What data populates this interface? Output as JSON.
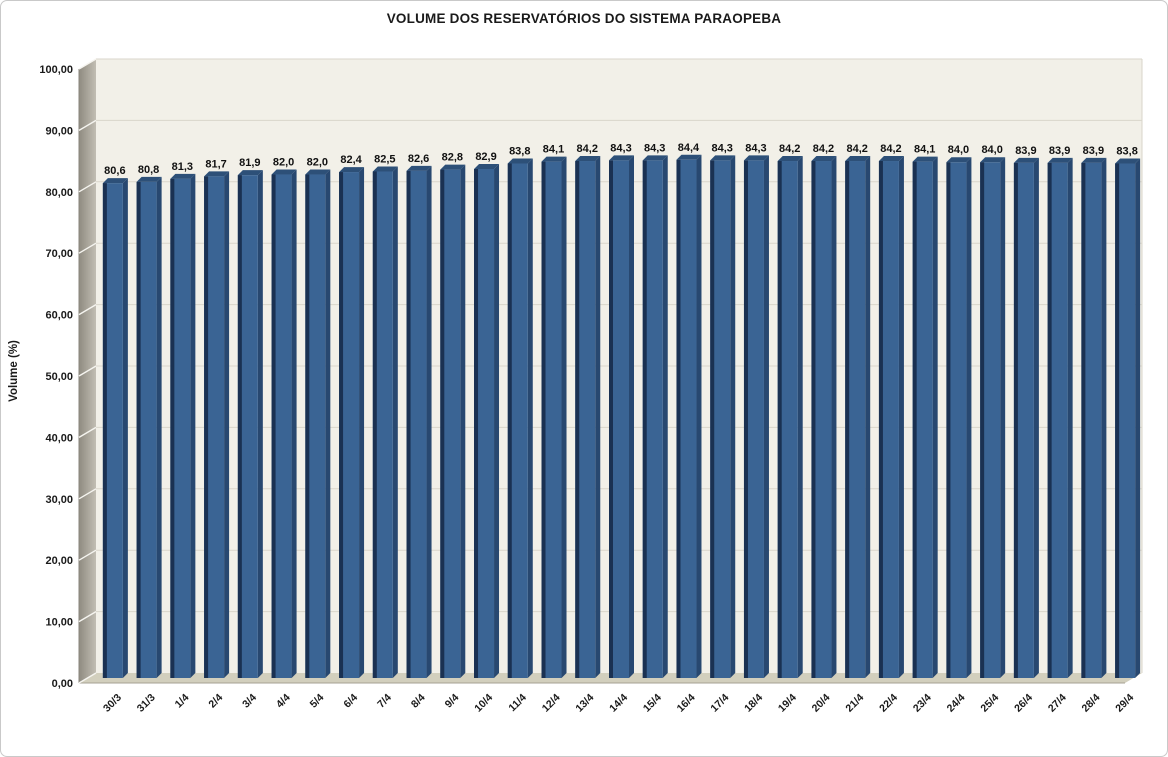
{
  "window": {
    "background": "#ffffff",
    "border_color": "#c9c9c9"
  },
  "chart_data": {
    "type": "bar",
    "style": "3d-column",
    "title": "VOLUME DOS RESERVATÓRIOS DO SISTEMA PARAOPEBA",
    "xlabel": "",
    "ylabel": "Volume (%)",
    "categories": [
      "30/3",
      "31/3",
      "1/4",
      "2/4",
      "3/4",
      "4/4",
      "5/4",
      "6/4",
      "7/4",
      "8/4",
      "9/4",
      "10/4",
      "11/4",
      "12/4",
      "13/4",
      "14/4",
      "15/4",
      "16/4",
      "17/4",
      "18/4",
      "19/4",
      "20/4",
      "21/4",
      "22/4",
      "23/4",
      "24/4",
      "25/4",
      "26/4",
      "27/4",
      "28/4",
      "29/4"
    ],
    "values": [
      80.6,
      80.8,
      81.3,
      81.7,
      81.9,
      82.0,
      82.0,
      82.4,
      82.5,
      82.6,
      82.8,
      82.9,
      83.8,
      84.1,
      84.2,
      84.3,
      84.3,
      84.4,
      84.3,
      84.3,
      84.2,
      84.2,
      84.2,
      84.2,
      84.1,
      84.0,
      84.0,
      83.9,
      83.9,
      83.9,
      83.8
    ],
    "value_labels": [
      "80,6",
      "80,8",
      "81,3",
      "81,7",
      "81,9",
      "82,0",
      "82,0",
      "82,4",
      "82,5",
      "82,6",
      "82,8",
      "82,9",
      "83,8",
      "84,1",
      "84,2",
      "84,3",
      "84,3",
      "84,4",
      "84,3",
      "84,3",
      "84,2",
      "84,2",
      "84,2",
      "84,2",
      "84,1",
      "84,0",
      "84,0",
      "83,9",
      "83,9",
      "83,9",
      "83,8"
    ],
    "ylim": [
      0,
      100
    ],
    "y_ticks": [
      0,
      10,
      20,
      30,
      40,
      50,
      60,
      70,
      80,
      90,
      100
    ],
    "y_tick_labels": [
      "0,00",
      "10,00",
      "20,00",
      "30,00",
      "40,00",
      "50,00",
      "60,00",
      "70,00",
      "80,00",
      "90,00",
      "100,00"
    ],
    "grid": true,
    "legend": false,
    "colors": {
      "bar_face": "#3a6494",
      "bar_left_edge": "#1a3152",
      "bar_side": "#284870",
      "bar_top": "#2d5078",
      "back_wall": "#f2f0e8",
      "gridline": "#d9d6cb",
      "wall_edge": "#d8d5ca",
      "side_wall_dark": "#8f8b81",
      "side_wall_light": "#c2beb3",
      "side_wall_gridline": "#f6f5f0",
      "floor": "#d2cfbd",
      "floor_edge": "#a5a193",
      "label_color": "#1a1a1a"
    }
  }
}
